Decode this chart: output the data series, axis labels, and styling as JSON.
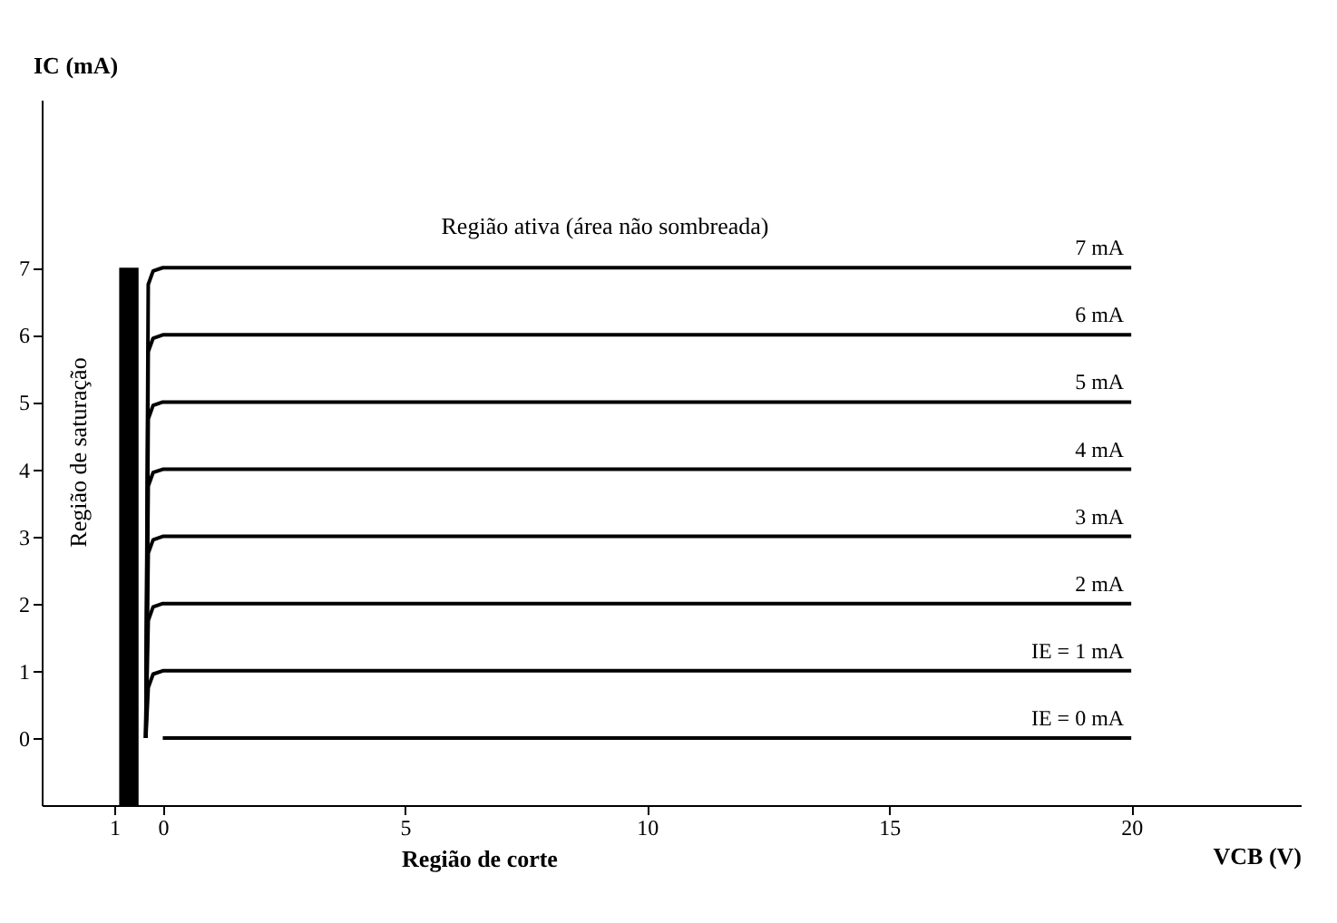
{
  "chart_data": {
    "type": "line",
    "xlabel": "VCB (V)",
    "ylabel": "IC (mA)",
    "xlim": [
      -2.5,
      23.5
    ],
    "ylim": [
      -1,
      9.5
    ],
    "xticks": [
      {
        "value": -1,
        "label": "1"
      },
      0,
      5,
      10,
      15,
      20
    ],
    "yticks": [
      0,
      1,
      2,
      3,
      4,
      5,
      6,
      7
    ],
    "grid": false,
    "marker": "none",
    "line_style": "solid",
    "series": [
      {
        "name": "7 mA",
        "color": "#000000",
        "x": [
          -0.35,
          -0.3,
          -0.2,
          0,
          20
        ],
        "values": [
          0,
          6.75,
          6.95,
          7,
          7
        ]
      },
      {
        "name": "6 mA",
        "color": "#000000",
        "x": [
          -0.35,
          -0.3,
          -0.2,
          0,
          20
        ],
        "values": [
          0,
          5.75,
          5.95,
          6,
          6
        ]
      },
      {
        "name": "5 mA",
        "color": "#000000",
        "x": [
          -0.35,
          -0.3,
          -0.2,
          0,
          20
        ],
        "values": [
          0,
          4.75,
          4.95,
          5,
          5
        ]
      },
      {
        "name": "4 mA",
        "color": "#000000",
        "x": [
          -0.35,
          -0.3,
          -0.2,
          0,
          20
        ],
        "values": [
          0,
          3.75,
          3.95,
          4,
          4
        ]
      },
      {
        "name": "3 mA",
        "color": "#000000",
        "x": [
          -0.35,
          -0.3,
          -0.2,
          0,
          20
        ],
        "values": [
          0,
          2.75,
          2.95,
          3,
          3
        ]
      },
      {
        "name": "2 mA",
        "color": "#000000",
        "x": [
          -0.35,
          -0.3,
          -0.2,
          0,
          20
        ],
        "values": [
          0,
          1.75,
          1.95,
          2,
          2
        ]
      },
      {
        "name": "IE = 1 mA",
        "color": "#000000",
        "x": [
          -0.35,
          -0.3,
          -0.2,
          0,
          20
        ],
        "values": [
          0,
          0.75,
          0.95,
          1,
          1
        ]
      },
      {
        "name": "IE = 0 mA",
        "color": "#000000",
        "x": [
          0,
          20
        ],
        "values": [
          0,
          0
        ]
      }
    ],
    "bands": [
      {
        "axis": "x",
        "from": -0.9,
        "to": -0.5,
        "color": "#000000"
      }
    ],
    "annotations": [
      "Região ativa (área não sombreada)",
      "Região de saturação",
      "Região de corte"
    ]
  }
}
